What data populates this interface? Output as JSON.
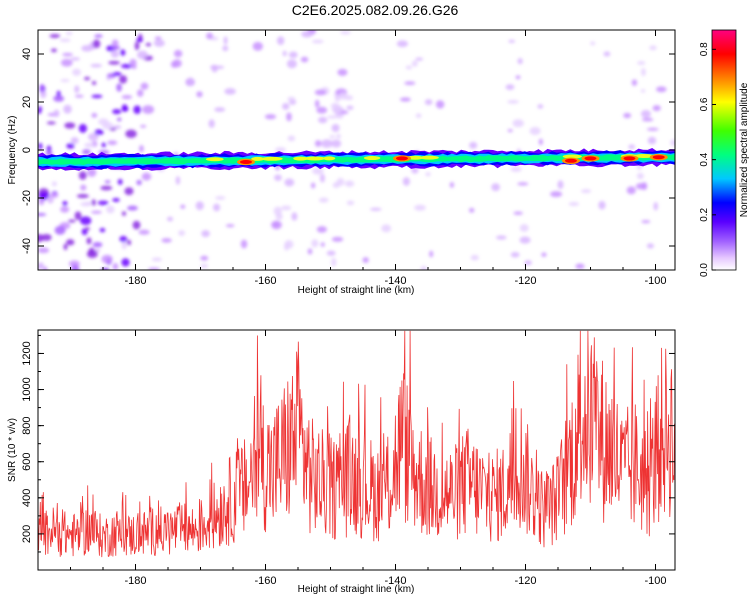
{
  "title": "C2E6.2025.082.09.26.G26",
  "chart_data": [
    {
      "type": "heatmap",
      "title": "C2E6.2025.082.09.26.G26",
      "xlabel": "Height of straight line (km)",
      "ylabel": "Frequency (Hz)",
      "xlim": [
        -195,
        -97
      ],
      "ylim": [
        -50,
        50
      ],
      "x_ticks": [
        "-180",
        "-160",
        "-140",
        "-120",
        "-100"
      ],
      "x_tick_values": [
        -180,
        -160,
        -140,
        -120,
        -100
      ],
      "y_ticks": [
        "40",
        "20",
        "0",
        "-20",
        "-40"
      ],
      "y_tick_values": [
        40,
        20,
        0,
        -20,
        -40
      ],
      "colorbar": {
        "label": "Normalized spectral amplitude",
        "range": [
          0,
          0.87
        ],
        "ticks": [
          "0.0",
          "0.2",
          "0.4",
          "0.6",
          "0.8"
        ],
        "tick_values": [
          0,
          0.2,
          0.4,
          0.6,
          0.8
        ],
        "colors": [
          "#ffffff",
          "#e6c8ff",
          "#8a2be2",
          "#5a00ff",
          "#0000ff",
          "#00c8ff",
          "#00ff80",
          "#40ff00",
          "#ffff00",
          "#ff8000",
          "#ff0000",
          "#ff0080"
        ]
      },
      "band": {
        "frequency_center_at_start": -5,
        "frequency_center_at_end": -3,
        "half_width": 2.5
      },
      "peak_features": [
        {
          "x": -163,
          "y": -5,
          "amplitude": 0.82
        },
        {
          "x": -139,
          "y": -3.5,
          "amplitude": 0.72
        },
        {
          "x": -113,
          "y": -4.5,
          "amplitude": 0.78
        },
        {
          "x": -110,
          "y": -3.5,
          "amplitude": 0.74
        },
        {
          "x": -104,
          "y": -3.5,
          "amplitude": 0.85
        },
        {
          "x": -99.5,
          "y": -3,
          "amplitude": 0.85
        }
      ]
    },
    {
      "type": "line",
      "xlabel": "Height of straight line (km)",
      "ylabel": "SNR (10 * v/v)",
      "xlim": [
        -195,
        -97
      ],
      "ylim": [
        0,
        1330
      ],
      "x_ticks": [
        "-180",
        "-160",
        "-140",
        "-120",
        "-100"
      ],
      "x_tick_values": [
        -180,
        -160,
        -140,
        -120,
        -100
      ],
      "y_ticks": [
        "200",
        "400",
        "600",
        "800",
        "1000",
        "1200"
      ],
      "y_tick_values": [
        200,
        400,
        600,
        800,
        1000,
        1200
      ],
      "series": [
        {
          "color": "#ee3333",
          "x": [
            -195,
            -193,
            -191,
            -189,
            -187,
            -185,
            -183,
            -181,
            -179,
            -177,
            -175,
            -173,
            -171,
            -169,
            -167,
            -165,
            -163,
            -161,
            -159,
            -157,
            -155,
            -153,
            -151,
            -149,
            -147,
            -145,
            -143,
            -141,
            -139,
            -137,
            -135,
            -133,
            -131,
            -129,
            -127,
            -125,
            -123,
            -121,
            -119,
            -117,
            -115,
            -113,
            -111,
            -109,
            -107,
            -105,
            -103,
            -101,
            -99,
            -97
          ],
          "y": [
            180,
            220,
            200,
            190,
            230,
            180,
            210,
            190,
            200,
            220,
            210,
            230,
            220,
            260,
            330,
            400,
            450,
            640,
            540,
            650,
            760,
            520,
            470,
            450,
            520,
            480,
            430,
            470,
            720,
            540,
            460,
            430,
            420,
            490,
            440,
            400,
            440,
            620,
            430,
            320,
            400,
            620,
            900,
            760,
            680,
            540,
            580,
            470,
            760,
            780
          ]
        }
      ]
    }
  ]
}
